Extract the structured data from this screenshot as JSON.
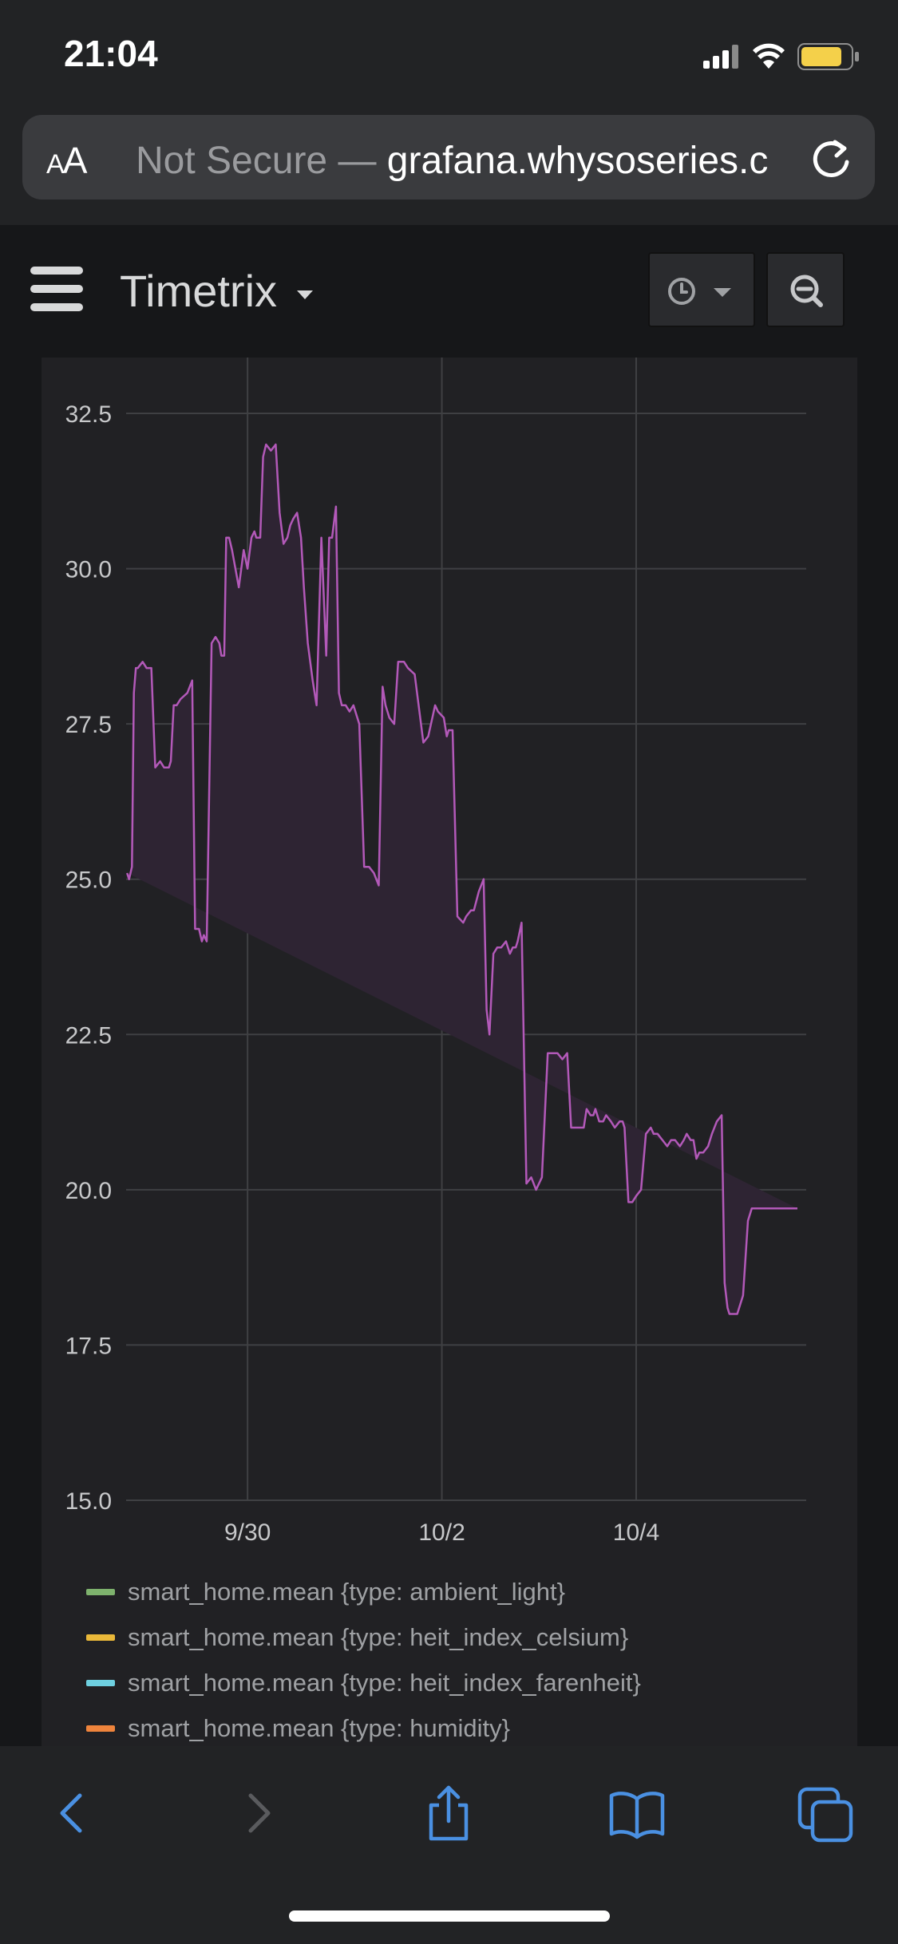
{
  "status_bar": {
    "time": "21:04"
  },
  "browser": {
    "url_prefix": "Not Secure — ",
    "url_host": "grafana.whysoseries.c",
    "aa_small": "A",
    "aa_large": "A"
  },
  "dashboard": {
    "title": "Timetrix"
  },
  "chart_data": {
    "type": "line",
    "title": "",
    "xlabel": "",
    "ylabel": "",
    "ylim": [
      15.0,
      33.4
    ],
    "y_ticks": [
      "15.0",
      "17.5",
      "20.0",
      "22.5",
      "25.0",
      "27.5",
      "30.0",
      "32.5"
    ],
    "x_ticks": [
      "9/30",
      "10/2",
      "10/4"
    ],
    "x_range_days": [
      -1.25,
      5.75
    ],
    "x_unit_note": "days relative to 9/30",
    "grid": true,
    "fill": true,
    "line_color": "#b359b9",
    "fill_color": "#2e2433",
    "series_x": [
      -1.24,
      -1.22,
      -1.19,
      -1.17,
      -1.15,
      -1.13,
      -1.08,
      -1.04,
      -0.99,
      -0.95,
      -0.9,
      -0.86,
      -0.81,
      -0.79,
      -0.76,
      -0.73,
      -0.69,
      -0.62,
      -0.57,
      -0.54,
      -0.5,
      -0.47,
      -0.45,
      -0.42,
      -0.37,
      -0.33,
      -0.29,
      -0.27,
      -0.24,
      -0.22,
      -0.19,
      -0.16,
      -0.09,
      -0.04,
      0.0,
      0.04,
      0.07,
      0.09,
      0.13,
      0.16,
      0.19,
      0.24,
      0.29,
      0.33,
      0.37,
      0.41,
      0.44,
      0.47,
      0.51,
      0.55,
      0.58,
      0.62,
      0.67,
      0.71,
      0.76,
      0.81,
      0.84,
      0.87,
      0.91,
      0.94,
      0.97,
      1.01,
      1.05,
      1.09,
      1.15,
      1.2,
      1.25,
      1.3,
      1.35,
      1.39,
      1.42,
      1.46,
      1.51,
      1.55,
      1.61,
      1.65,
      1.72,
      1.81,
      1.86,
      1.93,
      1.96,
      2.02,
      2.05,
      2.07,
      2.11,
      2.16,
      2.22,
      2.25,
      2.3,
      2.33,
      2.38,
      2.43,
      2.46,
      2.49,
      2.53,
      2.57,
      2.61,
      2.66,
      2.7,
      2.73,
      2.76,
      2.78,
      2.82,
      2.87,
      2.92,
      2.97,
      3.03,
      3.09,
      3.14,
      3.19,
      3.24,
      3.29,
      3.33,
      3.37,
      3.4,
      3.42,
      3.46,
      3.49,
      3.53,
      3.56,
      3.58,
      3.62,
      3.66,
      3.69,
      3.74,
      3.78,
      3.83,
      3.86,
      3.88,
      3.92,
      3.96,
      4.0,
      4.05,
      4.1,
      4.15,
      4.18,
      4.22,
      4.27,
      4.32,
      4.36,
      4.4,
      4.45,
      4.49,
      4.52,
      4.56,
      4.59,
      4.62,
      4.65,
      4.69,
      4.74,
      4.78,
      4.83,
      4.88,
      4.91,
      4.94,
      4.96,
      4.99,
      5.04,
      5.1,
      5.15,
      5.19,
      5.21,
      5.24,
      5.28,
      5.32,
      5.37,
      5.4,
      5.43,
      5.47,
      5.51,
      5.55,
      5.59,
      5.62,
      5.66,
      5.69,
      5.73
    ],
    "series_y": [
      25.1,
      25.0,
      25.2,
      28.0,
      28.4,
      28.4,
      28.5,
      28.4,
      28.4,
      26.8,
      26.9,
      26.8,
      26.8,
      26.9,
      27.8,
      27.8,
      27.9,
      28.0,
      28.2,
      24.2,
      24.2,
      24.0,
      24.1,
      24.0,
      28.8,
      28.9,
      28.8,
      28.6,
      28.6,
      30.5,
      30.5,
      30.3,
      29.7,
      30.3,
      30.0,
      30.5,
      30.6,
      30.5,
      30.5,
      31.8,
      32.0,
      31.9,
      32.0,
      30.9,
      30.4,
      30.5,
      30.7,
      30.8,
      30.9,
      30.5,
      29.7,
      28.8,
      28.2,
      27.8,
      30.5,
      28.6,
      30.5,
      30.5,
      31.0,
      28.0,
      27.8,
      27.8,
      27.7,
      27.8,
      27.5,
      25.2,
      25.2,
      25.1,
      24.9,
      28.1,
      27.8,
      27.6,
      27.5,
      28.5,
      28.5,
      28.4,
      28.3,
      27.2,
      27.3,
      27.8,
      27.7,
      27.6,
      27.3,
      27.4,
      27.4,
      24.4,
      24.3,
      24.4,
      24.5,
      24.5,
      24.8,
      25.0,
      22.9,
      22.5,
      23.8,
      23.9,
      23.9,
      24.0,
      23.8,
      23.9,
      23.9,
      24.0,
      24.3,
      20.1,
      20.2,
      20.0,
      20.2,
      22.2,
      22.2,
      22.2,
      22.1,
      22.2,
      21.0,
      21.0,
      21.0,
      21.0,
      21.0,
      21.3,
      21.2,
      21.2,
      21.3,
      21.1,
      21.1,
      21.2,
      21.1,
      21.0,
      21.1,
      21.1,
      21.0,
      19.8,
      19.8,
      19.9,
      20.0,
      20.9,
      21.0,
      20.9,
      20.9,
      20.8,
      20.7,
      20.8,
      20.8,
      20.7,
      20.8,
      20.9,
      20.8,
      20.8,
      20.5,
      20.6,
      20.6,
      20.7,
      20.9,
      21.1,
      21.2,
      18.5,
      18.1,
      18.0,
      18.0,
      18.0,
      18.3,
      19.5,
      19.7,
      19.7,
      19.7,
      19.7,
      19.7,
      19.7,
      19.7,
      19.7,
      19.7,
      19.7,
      19.7,
      19.7,
      19.7,
      19.7
    ],
    "legend": [
      {
        "label": "smart_home.mean {type: ambient_light}",
        "color": "#7eb26d"
      },
      {
        "label": "smart_home.mean {type: heit_index_celsium}",
        "color": "#eab839"
      },
      {
        "label": "smart_home.mean {type: heit_index_farenheit}",
        "color": "#6ed0e0"
      },
      {
        "label": "smart_home.mean {type: humidity}",
        "color": "#ef843c"
      }
    ]
  },
  "toolbar": {
    "icons": [
      "back-icon",
      "forward-icon",
      "share-icon",
      "bookmarks-icon",
      "tabs-icon"
    ],
    "accent": "#4a90e2"
  }
}
